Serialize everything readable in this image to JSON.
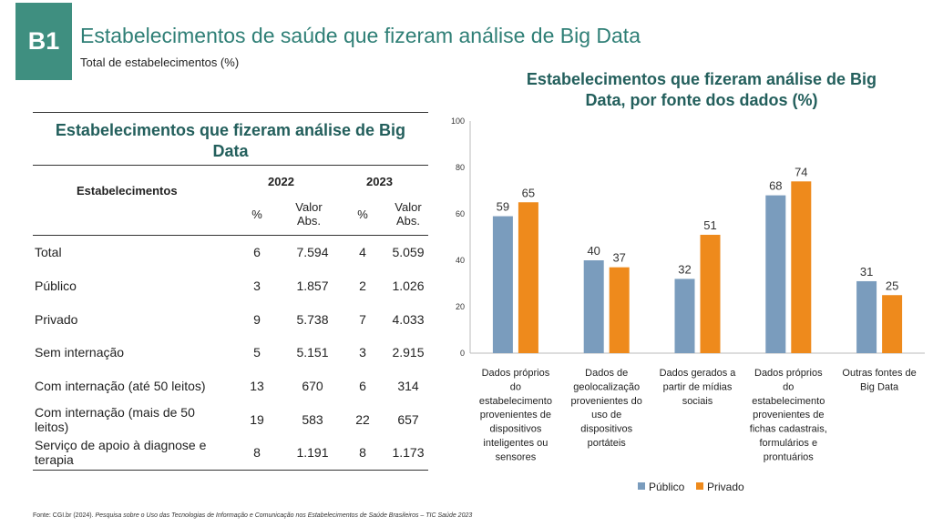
{
  "header": {
    "badge": "B1",
    "title": "Estabelecimentos de saúde que fizeram análise de Big Data",
    "subtitle": "Total de estabelecimentos (%)"
  },
  "table": {
    "title": "Estabelecimentos que fizeram análise de Big Data",
    "col_row_header": "Estabelecimentos",
    "year1": "2022",
    "year2": "2023",
    "pct": "%",
    "abs": "Valor Abs.",
    "rows": [
      {
        "label": "Total",
        "p22": "6",
        "a22": "7.594",
        "p23": "4",
        "a23": "5.059"
      },
      {
        "label": "Público",
        "p22": "3",
        "a22": "1.857",
        "p23": "2",
        "a23": "1.026"
      },
      {
        "label": "Privado",
        "p22": "9",
        "a22": "5.738",
        "p23": "7",
        "a23": "4.033"
      },
      {
        "label": "Sem internação",
        "p22": "5",
        "a22": "5.151",
        "p23": "3",
        "a23": "2.915"
      },
      {
        "label": "Com internação (até 50 leitos)",
        "p22": "13",
        "a22": "670",
        "p23": "6",
        "a23": "314"
      },
      {
        "label": "Com internação (mais de 50 leitos)",
        "p22": "19",
        "a22": "583",
        "p23": "22",
        "a23": "657"
      },
      {
        "label": "Serviço de apoio à diagnose e terapia",
        "p22": "8",
        "a22": "1.191",
        "p23": "8",
        "a23": "1.173"
      }
    ]
  },
  "chart_data": {
    "type": "bar",
    "title": "Estabelecimentos que fizeram análise de Big Data, por fonte dos dados (%)",
    "categories": [
      "Dados próprios do estabelecimento provenientes de dispositivos inteligentes ou sensores",
      "Dados de geolocalização provenientes do uso de dispositivos portáteis",
      "Dados gerados a partir de mídias sociais",
      "Dados próprios do estabelecimento provenientes de fichas cadastrais, formulários e prontuários",
      "Outras fontes de Big Data"
    ],
    "category_lines": [
      [
        "Dados próprios",
        "do",
        "estabelecimento",
        "provenientes de",
        "dispositivos",
        "inteligentes ou",
        "sensores"
      ],
      [
        "Dados de",
        "geolocalização",
        "provenientes do",
        "uso de",
        "dispositivos",
        "portáteis"
      ],
      [
        "Dados gerados a",
        "partir de mídias",
        "sociais"
      ],
      [
        "Dados próprios",
        "do",
        "estabelecimento",
        "provenientes de",
        "fichas cadastrais,",
        "formulários e",
        "prontuários"
      ],
      [
        "Outras fontes de",
        "Big Data"
      ]
    ],
    "series": [
      {
        "name": "Público",
        "values": [
          59,
          40,
          32,
          68,
          31
        ],
        "color": "#7a9cbd"
      },
      {
        "name": "Privado",
        "values": [
          65,
          37,
          51,
          74,
          25
        ],
        "color": "#ee8a1c"
      }
    ],
    "ylim": [
      0,
      100
    ],
    "yticks": [
      0,
      20,
      40,
      60,
      80,
      100
    ],
    "grid": false,
    "legend": "bottom"
  },
  "footer": {
    "source_prefix": "Fonte: CGI.br (2024).",
    "source_italic": "Pesquisa sobre o Uso das Tecnologias de Informação e Comunicação nos Estabelecimentos de Saúde Brasileiros – TIC Saúde 2023"
  }
}
